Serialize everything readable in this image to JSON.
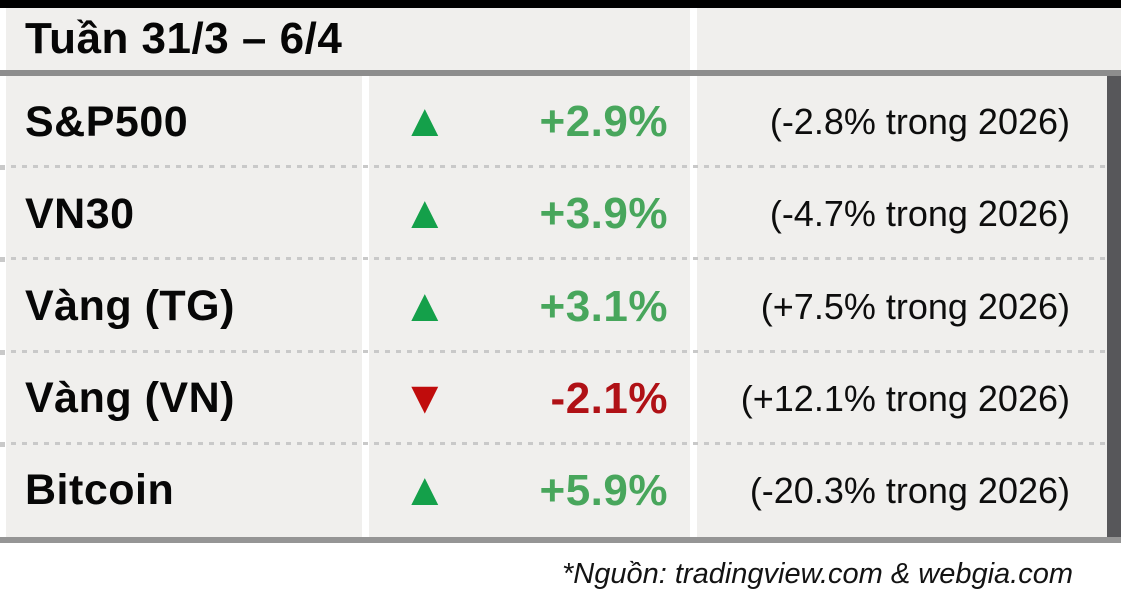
{
  "header": {
    "title": "Tuần 31/3 – 6/4"
  },
  "rows": [
    {
      "label": "S&P500",
      "direction": "up",
      "change": "+2.9%",
      "note": "(-2.8% trong 2026)"
    },
    {
      "label": "VN30",
      "direction": "up",
      "change": "+3.9%",
      "note": "(-4.7% trong 2026)"
    },
    {
      "label": "Vàng (TG)",
      "direction": "up",
      "change": "+3.1%",
      "note": "(+7.5% trong 2026)"
    },
    {
      "label": "Vàng (VN)",
      "direction": "down",
      "change": "-2.1%",
      "note": "(+12.1% trong 2026)"
    },
    {
      "label": "Bitcoin",
      "direction": "up",
      "change": "+5.9%",
      "note": "(-20.3% trong 2026)"
    }
  ],
  "footer": {
    "source": "*Nguồn: tradingview.com & webgia.com"
  },
  "icons": {
    "up": "▲",
    "down": "▼"
  },
  "colors": {
    "background_cell": "#f0efed",
    "green_icon": "#14a04a",
    "green_text": "#48a65c",
    "red_icon": "#c00c0c",
    "red_text": "#b01116",
    "top_bar": "#000000",
    "rule_gray": "#8d8d8d",
    "right_strip": "#57575a"
  },
  "chart_data": {
    "type": "table",
    "title": "Tuần 31/3 – 6/4",
    "rows": [
      {
        "asset": "S&P500",
        "week_change_pct": 2.9,
        "direction": "up",
        "note_2026": "(-2.8% trong 2026)",
        "change_2026_pct": -2.8
      },
      {
        "asset": "VN30",
        "week_change_pct": 3.9,
        "direction": "up",
        "note_2026": "(-4.7% trong 2026)",
        "change_2026_pct": -4.7
      },
      {
        "asset": "Vàng (TG)",
        "week_change_pct": 3.1,
        "direction": "up",
        "note_2026": "(+7.5% trong 2026)",
        "change_2026_pct": 7.5
      },
      {
        "asset": "Vàng (VN)",
        "week_change_pct": -2.1,
        "direction": "down",
        "note_2026": "(+12.1% trong 2026)",
        "change_2026_pct": 12.1
      },
      {
        "asset": "Bitcoin",
        "week_change_pct": 5.9,
        "direction": "up",
        "note_2026": "(-20.3% trong 2026)",
        "change_2026_pct": -20.3
      }
    ],
    "source": "*Nguồn: tradingview.com & webgia.com",
    "legend_position": "none",
    "grid": "dotted row separators"
  }
}
